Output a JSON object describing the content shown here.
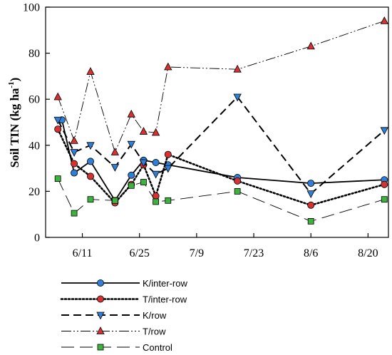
{
  "chart_data": {
    "type": "line",
    "ylabel": "Soil TIN (kg ha",
    "ylabel_sup": "-1",
    "ylabel_close": ")",
    "ylim": [
      0,
      100
    ],
    "yticks": [
      0,
      20,
      40,
      60,
      80,
      100
    ],
    "xlim": [
      2,
      86
    ],
    "x_ticks": [
      {
        "x": 11,
        "label": "6/11"
      },
      {
        "x": 25,
        "label": "6/25"
      },
      {
        "x": 39,
        "label": "7/9"
      },
      {
        "x": 53,
        "label": "7/23"
      },
      {
        "x": 67,
        "label": "8/6"
      },
      {
        "x": 81,
        "label": "8/20"
      }
    ],
    "grid": false,
    "legend_position": "bottom",
    "series": [
      {
        "name": "K/inter-row",
        "style": "solid",
        "marker": "circle",
        "color": "#2f7fd6",
        "x": [
          6,
          9,
          13,
          19,
          23,
          26,
          29,
          32,
          49,
          67,
          85
        ],
        "y": [
          51,
          28,
          33,
          16,
          27,
          33.5,
          32.5,
          31.5,
          26,
          23.5,
          25
        ]
      },
      {
        "name": "T/inter-row",
        "style": "dotted",
        "marker": "circle",
        "color": "#d63232",
        "x": [
          5,
          9,
          13,
          19,
          23,
          26,
          29,
          32,
          49,
          67,
          85
        ],
        "y": [
          47,
          32,
          26.5,
          15,
          23,
          31.5,
          18,
          36,
          24.5,
          14,
          23
        ]
      },
      {
        "name": "K/row",
        "style": "dashed",
        "marker": "triangle-down",
        "color": "#2f7fd6",
        "x": [
          5,
          9,
          13,
          19,
          23,
          26,
          29,
          32,
          49,
          67,
          85
        ],
        "y": [
          51,
          37,
          40,
          30.5,
          40.5,
          32.5,
          27.5,
          30,
          61,
          19,
          46.5
        ]
      },
      {
        "name": "T/row",
        "style": "dash-dot-dot",
        "marker": "triangle-up",
        "color": "#d63232",
        "x": [
          5,
          9,
          13,
          19,
          23,
          26,
          29,
          32,
          49,
          67,
          85
        ],
        "y": [
          61,
          42,
          72,
          37,
          53.5,
          46,
          45.5,
          74,
          73,
          83,
          94
        ]
      },
      {
        "name": "Control",
        "style": "long-dash",
        "marker": "square",
        "color": "#3cb43c",
        "x": [
          5,
          9,
          13,
          19,
          23,
          26,
          29,
          32,
          49,
          67,
          85
        ],
        "y": [
          25.5,
          10.5,
          16.5,
          16,
          22.5,
          24,
          15.5,
          16,
          20,
          7,
          16.5
        ]
      }
    ]
  }
}
